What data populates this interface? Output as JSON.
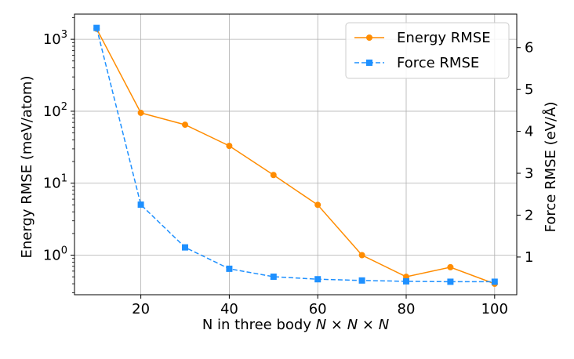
{
  "chart_data": {
    "type": "line",
    "xlabel_prefix": "N in three body ",
    "xlabel_math": "N × N × N",
    "ylabel_left": "Energy RMSE (meV/atom)",
    "ylabel_right": "Force RMSE (eV/Å)",
    "x": [
      10,
      20,
      30,
      40,
      50,
      60,
      70,
      80,
      90,
      100
    ],
    "xticks": [
      "20",
      "40",
      "60",
      "80",
      "100"
    ],
    "xtick_values": [
      20,
      40,
      60,
      80,
      100
    ],
    "xlim": [
      5,
      105
    ],
    "ylim_left_log10": [
      -0.55,
      3.35
    ],
    "yticks_left": [
      {
        "base": "10",
        "exp": "0",
        "value": 1
      },
      {
        "base": "10",
        "exp": "1",
        "value": 10
      },
      {
        "base": "10",
        "exp": "2",
        "value": 100
      },
      {
        "base": "10",
        "exp": "3",
        "value": 1000
      }
    ],
    "ylim_right": [
      0.1,
      6.8
    ],
    "yticks_right": [
      "1",
      "2",
      "3",
      "4",
      "5",
      "6"
    ],
    "ytick_right_values": [
      1,
      2,
      3,
      4,
      5,
      6
    ],
    "series": [
      {
        "name": "Energy RMSE",
        "axis": "left",
        "color": "#ff8c00",
        "style": "solid",
        "marker": "circle",
        "values": [
          1400,
          95,
          65,
          33,
          13,
          5,
          1.0,
          0.5,
          0.68,
          0.4
        ]
      },
      {
        "name": "Force RMSE",
        "axis": "right",
        "color": "#1e90ff",
        "style": "dashed",
        "marker": "square",
        "values": [
          6.47,
          2.25,
          1.23,
          0.72,
          0.53,
          0.47,
          0.44,
          0.42,
          0.41,
          0.41
        ]
      }
    ],
    "grid": true,
    "legend": "top-right"
  }
}
